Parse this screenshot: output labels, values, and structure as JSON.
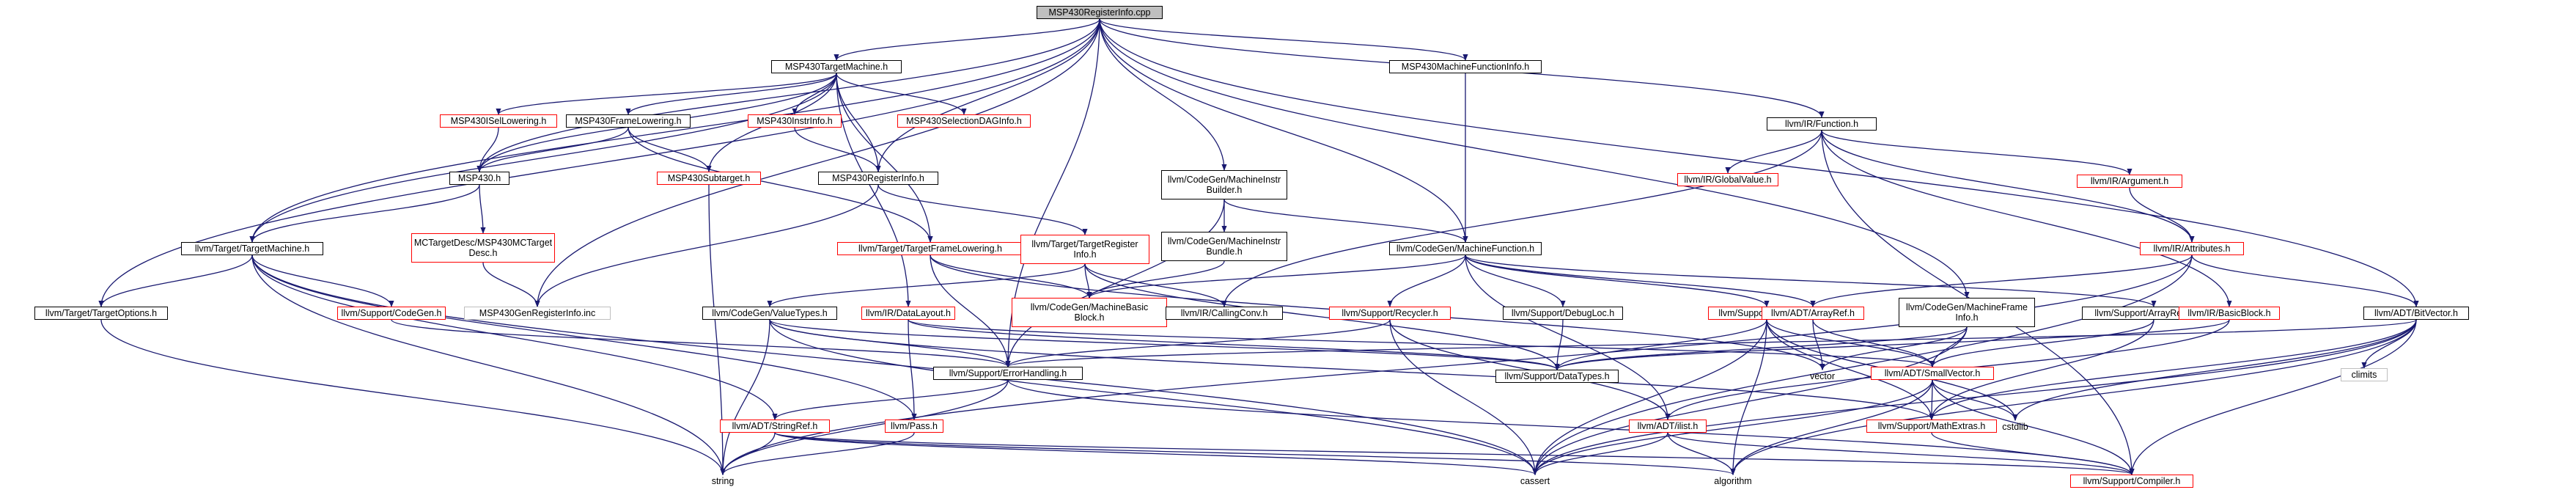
{
  "diagram": {
    "colors": {
      "edge": "#191970",
      "node_border": "#000000",
      "missing_border": "#ff0000",
      "generated_border": "#bfbfbf",
      "root_fill": "#bfbfbf"
    },
    "nodes": [
      {
        "id": "root",
        "label": "MSP430RegisterInfo.cpp",
        "style": "root"
      },
      {
        "id": "tm",
        "label": "MSP430TargetMachine.h",
        "style": "black"
      },
      {
        "id": "mfi",
        "label": "MSP430MachineFunctionInfo.h",
        "style": "black"
      },
      {
        "id": "fn",
        "label": "llvm/IR/Function.h",
        "style": "black"
      },
      {
        "id": "isel",
        "label": "MSP430ISelLowering.h",
        "style": "red"
      },
      {
        "id": "frl",
        "label": "MSP430FrameLowering.h",
        "style": "black"
      },
      {
        "id": "instr",
        "label": "MSP430InstrInfo.h",
        "style": "red"
      },
      {
        "id": "seldag",
        "label": "MSP430SelectionDAGInfo.h",
        "style": "red"
      },
      {
        "id": "mib",
        "label": "llvm/CodeGen/MachineInstr\nBuilder.h",
        "style": "black"
      },
      {
        "id": "gv",
        "label": "llvm/IR/GlobalValue.h",
        "style": "red"
      },
      {
        "id": "arg",
        "label": "llvm/IR/Argument.h",
        "style": "red"
      },
      {
        "id": "msp",
        "label": "MSP430.h",
        "style": "black"
      },
      {
        "id": "sub",
        "label": "MSP430Subtarget.h",
        "style": "red"
      },
      {
        "id": "reginfo",
        "label": "MSP430RegisterInfo.h",
        "style": "black"
      },
      {
        "id": "mcdesc",
        "label": "MCTargetDesc/MSP430MCTarget\nDesc.h",
        "style": "red"
      },
      {
        "id": "tgtfl",
        "label": "llvm/Target/TargetFrameLowering.h",
        "style": "red"
      },
      {
        "id": "tgtreg",
        "label": "llvm/Target/TargetRegister\nInfo.h",
        "style": "red"
      },
      {
        "id": "mibun",
        "label": "llvm/CodeGen/MachineInstr\nBundle.h",
        "style": "black"
      },
      {
        "id": "mf",
        "label": "llvm/CodeGen/MachineFunction.h",
        "style": "black"
      },
      {
        "id": "attr",
        "label": "llvm/IR/Attributes.h",
        "style": "red"
      },
      {
        "id": "tgtm",
        "label": "llvm/Target/TargetMachine.h",
        "style": "black"
      },
      {
        "id": "bitvec",
        "label": "llvm/ADT/BitVector.h",
        "style": "black"
      },
      {
        "id": "tgto",
        "label": "llvm/Target/TargetOptions.h",
        "style": "black"
      },
      {
        "id": "cg",
        "label": "llvm/Support/CodeGen.h",
        "style": "red"
      },
      {
        "id": "gen",
        "label": "MSP430GenRegisterInfo.inc",
        "style": "gray"
      },
      {
        "id": "vt",
        "label": "llvm/CodeGen/ValueTypes.h",
        "style": "black"
      },
      {
        "id": "dl",
        "label": "llvm/IR/DataLayout.h",
        "style": "red"
      },
      {
        "id": "mbb",
        "label": "llvm/CodeGen/MachineBasic\nBlock.h",
        "style": "red"
      },
      {
        "id": "cc",
        "label": "llvm/IR/CallingConv.h",
        "style": "black"
      },
      {
        "id": "recy",
        "label": "llvm/Support/Recycler.h",
        "style": "red"
      },
      {
        "id": "dbg",
        "label": "llvm/Support/DebugLoc.h",
        "style": "black"
      },
      {
        "id": "alloc",
        "label": "llvm/Support/Allocator.h",
        "style": "red"
      },
      {
        "id": "aref",
        "label": "llvm/ADT/ArrayRef.h",
        "style": "red"
      },
      {
        "id": "mfinfo",
        "label": "llvm/CodeGen/MachineFrame\nInfo.h",
        "style": "black"
      },
      {
        "id": "arec",
        "label": "llvm/Support/ArrayRecycler.h",
        "style": "black"
      },
      {
        "id": "bb",
        "label": "llvm/IR/BasicBlock.h",
        "style": "red"
      },
      {
        "id": "climits",
        "label": "climits",
        "style": "gray"
      },
      {
        "id": "eh",
        "label": "llvm/Support/ErrorHandling.h",
        "style": "black"
      },
      {
        "id": "dt",
        "label": "llvm/Support/DataTypes.h",
        "style": "black"
      },
      {
        "id": "vector",
        "label": "vector",
        "style": "none"
      },
      {
        "id": "sv",
        "label": "llvm/ADT/SmallVector.h",
        "style": "red"
      },
      {
        "id": "cstdlib",
        "label": "cstdlib",
        "style": "none"
      },
      {
        "id": "sref",
        "label": "llvm/ADT/StringRef.h",
        "style": "red"
      },
      {
        "id": "pass",
        "label": "llvm/Pass.h",
        "style": "red"
      },
      {
        "id": "ilist",
        "label": "llvm/ADT/ilist.h",
        "style": "red"
      },
      {
        "id": "mext",
        "label": "llvm/Support/MathExtras.h",
        "style": "red"
      },
      {
        "id": "string",
        "label": "string",
        "style": "none"
      },
      {
        "id": "cassert",
        "label": "cassert",
        "style": "none"
      },
      {
        "id": "algorithm",
        "label": "algorithm",
        "style": "none"
      },
      {
        "id": "compiler",
        "label": "llvm/Support/Compiler.h",
        "style": "red"
      }
    ],
    "edges": [
      [
        "root",
        "tm"
      ],
      [
        "root",
        "mfi"
      ],
      [
        "root",
        "fn"
      ],
      [
        "root",
        "reginfo"
      ],
      [
        "root",
        "msp"
      ],
      [
        "root",
        "tgtm"
      ],
      [
        "root",
        "tgto"
      ],
      [
        "root",
        "gen"
      ],
      [
        "root",
        "mib"
      ],
      [
        "root",
        "mf"
      ],
      [
        "root",
        "bitvec"
      ],
      [
        "root",
        "eh"
      ],
      [
        "root",
        "mfinfo"
      ],
      [
        "tm",
        "isel"
      ],
      [
        "tm",
        "frl"
      ],
      [
        "tm",
        "instr"
      ],
      [
        "tm",
        "seldag"
      ],
      [
        "tm",
        "sub"
      ],
      [
        "tm",
        "reginfo"
      ],
      [
        "tm",
        "tgtm"
      ],
      [
        "tm",
        "tgtfl"
      ],
      [
        "tm",
        "dl"
      ],
      [
        "tm",
        "msp"
      ],
      [
        "mfi",
        "mf"
      ],
      [
        "fn",
        "gv"
      ],
      [
        "fn",
        "arg"
      ],
      [
        "fn",
        "attr"
      ],
      [
        "fn",
        "cc"
      ],
      [
        "fn",
        "compiler"
      ],
      [
        "fn",
        "bb"
      ],
      [
        "isel",
        "msp"
      ],
      [
        "frl",
        "msp"
      ],
      [
        "frl",
        "sub"
      ],
      [
        "frl",
        "tgtfl"
      ],
      [
        "instr",
        "reginfo"
      ],
      [
        "reginfo",
        "tgtreg"
      ],
      [
        "reginfo",
        "gen"
      ],
      [
        "msp",
        "mcdesc"
      ],
      [
        "msp",
        "tgtm"
      ],
      [
        "mcdesc",
        "gen"
      ],
      [
        "sub",
        "string"
      ],
      [
        "mib",
        "mf"
      ],
      [
        "mib",
        "mibun"
      ],
      [
        "mib",
        "eh"
      ],
      [
        "mibun",
        "mbb"
      ],
      [
        "tgtreg",
        "mbb"
      ],
      [
        "tgtreg",
        "cc"
      ],
      [
        "tgtreg",
        "vt"
      ],
      [
        "tgtreg",
        "dt"
      ],
      [
        "tgtfl",
        "mbb"
      ],
      [
        "tgtfl",
        "vector"
      ],
      [
        "tgtfl",
        "eh"
      ],
      [
        "mf",
        "mbb"
      ],
      [
        "mf",
        "recy"
      ],
      [
        "mf",
        "dbg"
      ],
      [
        "mf",
        "alloc"
      ],
      [
        "mf",
        "aref"
      ],
      [
        "mf",
        "arec"
      ],
      [
        "mf",
        "ilist"
      ],
      [
        "arg",
        "attr"
      ],
      [
        "attr",
        "aref"
      ],
      [
        "attr",
        "bitvec"
      ],
      [
        "attr",
        "string"
      ],
      [
        "attr",
        "cassert"
      ],
      [
        "tgtm",
        "tgto"
      ],
      [
        "tgtm",
        "cg"
      ],
      [
        "tgtm",
        "string"
      ],
      [
        "tgtm",
        "sref"
      ],
      [
        "tgtm",
        "pass"
      ],
      [
        "tgtm",
        "cassert"
      ],
      [
        "tgto",
        "string"
      ],
      [
        "cg",
        "eh"
      ],
      [
        "vt",
        "eh"
      ],
      [
        "vt",
        "dt"
      ],
      [
        "vt",
        "string"
      ],
      [
        "vt",
        "cassert"
      ],
      [
        "vt",
        "mext"
      ],
      [
        "dl",
        "pass"
      ],
      [
        "dl",
        "dt"
      ],
      [
        "dl",
        "sv"
      ],
      [
        "recy",
        "eh"
      ],
      [
        "recy",
        "ilist"
      ],
      [
        "recy",
        "cassert"
      ],
      [
        "dbg",
        "dt"
      ],
      [
        "alloc",
        "dt"
      ],
      [
        "alloc",
        "sv"
      ],
      [
        "alloc",
        "mext"
      ],
      [
        "alloc",
        "cassert"
      ],
      [
        "alloc",
        "algorithm"
      ],
      [
        "alloc",
        "cstdlib"
      ],
      [
        "aref",
        "sv"
      ],
      [
        "aref",
        "vector"
      ],
      [
        "mfinfo",
        "sv"
      ],
      [
        "mfinfo",
        "vector"
      ],
      [
        "mfinfo",
        "dt"
      ],
      [
        "mfinfo",
        "cassert"
      ],
      [
        "arec",
        "sv"
      ],
      [
        "arec",
        "mext"
      ],
      [
        "bb",
        "ilist"
      ],
      [
        "bb",
        "dt"
      ],
      [
        "bitvec",
        "climits"
      ],
      [
        "bitvec",
        "cstdlib"
      ],
      [
        "bitvec",
        "algorithm"
      ],
      [
        "bitvec",
        "cassert"
      ],
      [
        "bitvec",
        "mext"
      ],
      [
        "bitvec",
        "eh"
      ],
      [
        "bitvec",
        "compiler"
      ],
      [
        "eh",
        "sref"
      ],
      [
        "eh",
        "string"
      ],
      [
        "eh",
        "compiler"
      ],
      [
        "sv",
        "cassert"
      ],
      [
        "sv",
        "mext"
      ],
      [
        "sv",
        "algorithm"
      ],
      [
        "sv",
        "cstdlib"
      ],
      [
        "sv",
        "compiler"
      ],
      [
        "sref",
        "string"
      ],
      [
        "sref",
        "cassert"
      ],
      [
        "sref",
        "algorithm"
      ],
      [
        "sref",
        "compiler"
      ],
      [
        "pass",
        "string"
      ],
      [
        "ilist",
        "cassert"
      ],
      [
        "ilist",
        "algorithm"
      ],
      [
        "ilist",
        "compiler"
      ],
      [
        "mext",
        "compiler"
      ]
    ]
  }
}
